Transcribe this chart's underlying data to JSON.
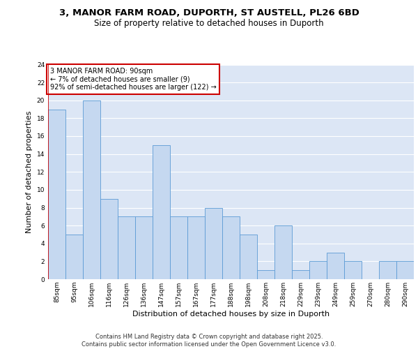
{
  "title_line1": "3, MANOR FARM ROAD, DUPORTH, ST AUSTELL, PL26 6BD",
  "title_line2": "Size of property relative to detached houses in Duporth",
  "xlabel": "Distribution of detached houses by size in Duporth",
  "ylabel": "Number of detached properties",
  "bins": [
    "85sqm",
    "95sqm",
    "106sqm",
    "116sqm",
    "126sqm",
    "136sqm",
    "147sqm",
    "157sqm",
    "167sqm",
    "177sqm",
    "188sqm",
    "198sqm",
    "208sqm",
    "218sqm",
    "229sqm",
    "239sqm",
    "249sqm",
    "259sqm",
    "270sqm",
    "280sqm",
    "290sqm"
  ],
  "values": [
    19,
    5,
    20,
    9,
    7,
    7,
    15,
    7,
    7,
    8,
    7,
    5,
    1,
    6,
    1,
    2,
    3,
    2,
    0,
    2,
    2
  ],
  "bar_color": "#c5d8f0",
  "bar_edge_color": "#5b9bd5",
  "background_color": "#dce6f5",
  "grid_color": "#ffffff",
  "annotation_text": "3 MANOR FARM ROAD: 90sqm\n← 7% of detached houses are smaller (9)\n92% of semi-detached houses are larger (122) →",
  "annotation_box_color": "#ffffff",
  "annotation_box_edge": "#cc0000",
  "vline_color": "#cc0000",
  "ylim": [
    0,
    24
  ],
  "yticks": [
    0,
    2,
    4,
    6,
    8,
    10,
    12,
    14,
    16,
    18,
    20,
    22,
    24
  ],
  "footer_text": "Contains HM Land Registry data © Crown copyright and database right 2025.\nContains public sector information licensed under the Open Government Licence v3.0.",
  "title_fontsize": 9.5,
  "subtitle_fontsize": 8.5,
  "tick_fontsize": 6.5,
  "ylabel_fontsize": 8,
  "xlabel_fontsize": 8,
  "annotation_fontsize": 7,
  "footer_fontsize": 6
}
